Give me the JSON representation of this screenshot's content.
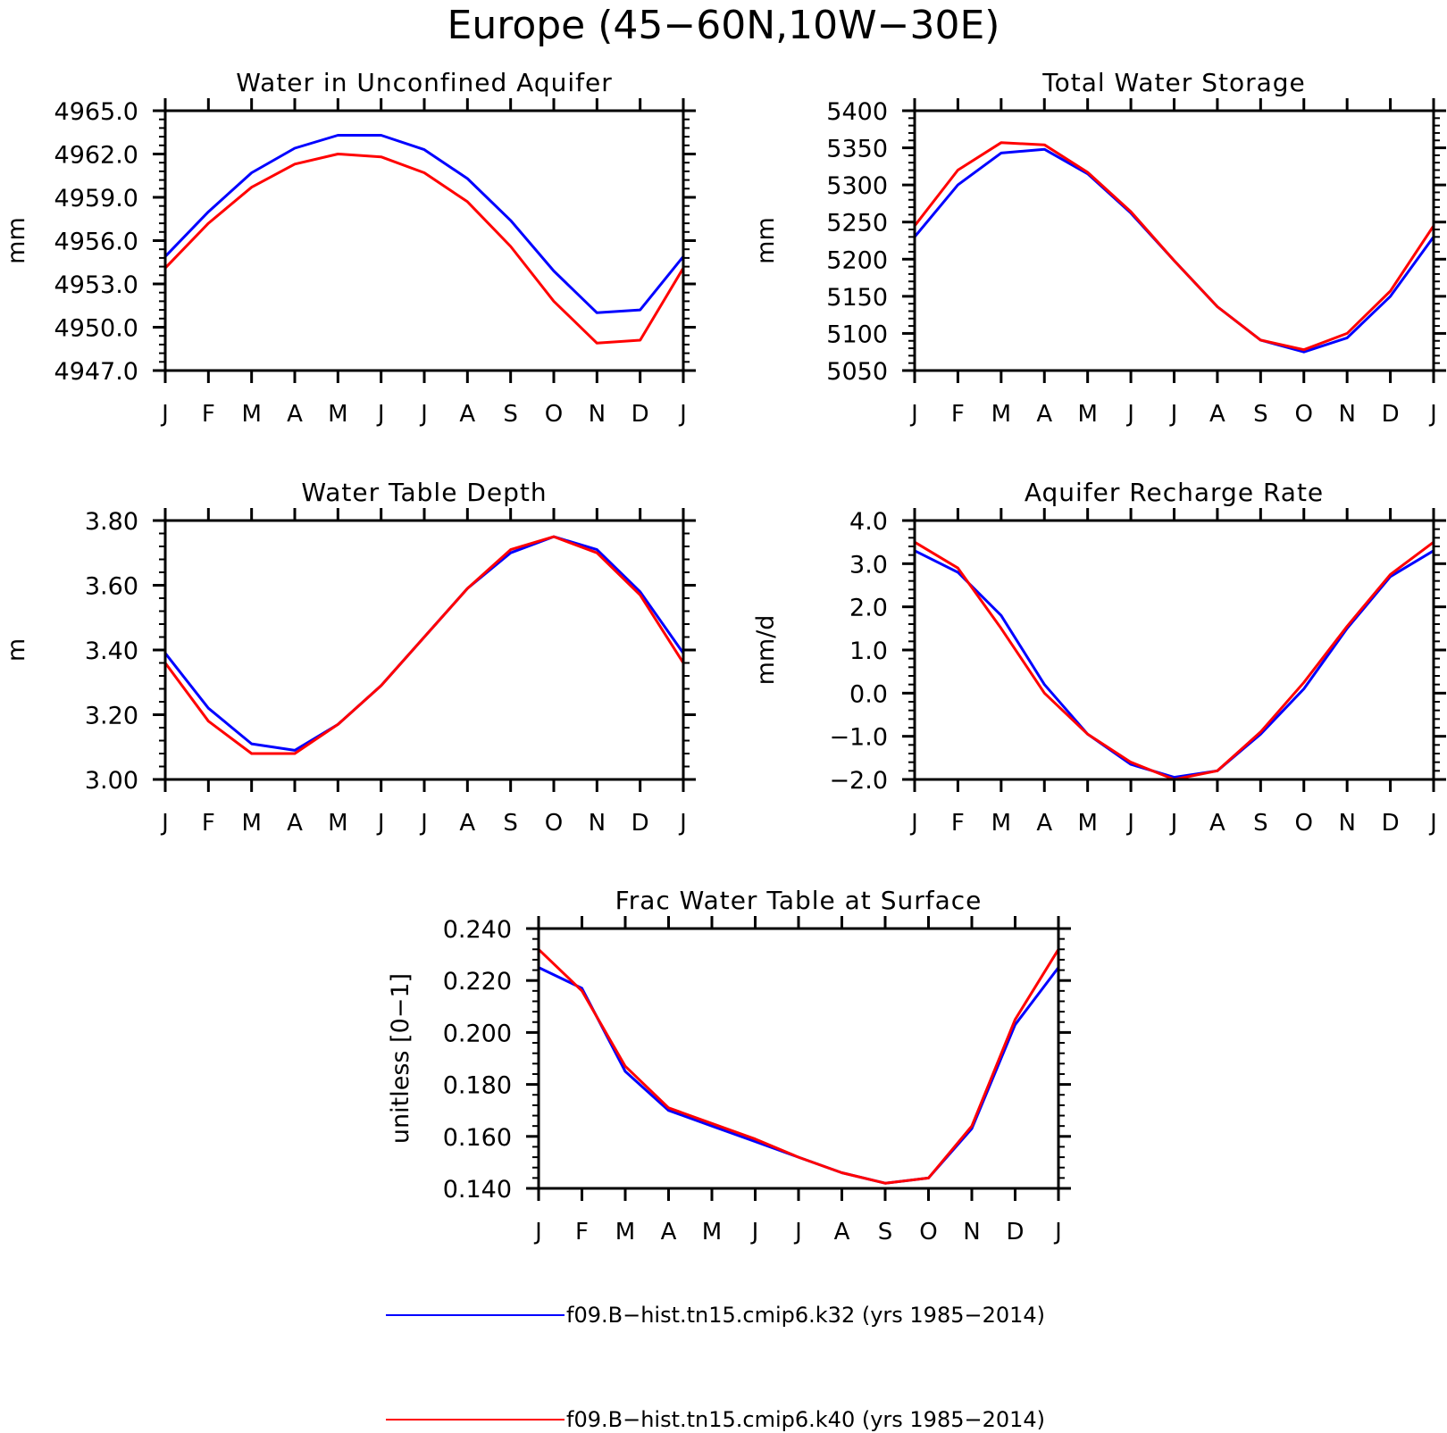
{
  "title": "Europe (45−60N,10W−30E)",
  "chart_data": [
    {
      "type": "line",
      "title": "Water in Unconfined Aquifer",
      "ylabel": "mm",
      "xlabel": "",
      "x": [
        "J",
        "F",
        "M",
        "A",
        "M",
        "J",
        "J",
        "A",
        "S",
        "O",
        "N",
        "D",
        "J"
      ],
      "ylim": [
        4947.0,
        4965.0
      ],
      "yticks": [
        "4947.0",
        "4950.0",
        "4953.0",
        "4956.0",
        "4959.0",
        "4962.0",
        "4965.0"
      ],
      "series": [
        {
          "name": "f09.B−hist.tn15.cmip6.k32 (yrs 1985−2014)",
          "color": "#0000ff",
          "values": [
            4954.9,
            4958.0,
            4960.7,
            4962.4,
            4963.3,
            4963.3,
            4962.3,
            4960.3,
            4957.4,
            4953.9,
            4951.0,
            4951.2,
            4954.9
          ]
        },
        {
          "name": "f09.B−hist.tn15.cmip6.k40 (yrs 1985−2014)",
          "color": "#ff0000",
          "values": [
            4954.1,
            4957.2,
            4959.7,
            4961.3,
            4962.0,
            4961.8,
            4960.7,
            4958.7,
            4955.6,
            4951.8,
            4948.9,
            4949.1,
            4954.1
          ]
        }
      ]
    },
    {
      "type": "line",
      "title": "Total Water Storage",
      "ylabel": "mm",
      "xlabel": "",
      "x": [
        "J",
        "F",
        "M",
        "A",
        "M",
        "J",
        "J",
        "A",
        "S",
        "O",
        "N",
        "D",
        "J"
      ],
      "ylim": [
        5050,
        5400
      ],
      "yticks": [
        "5050",
        "5100",
        "5150",
        "5200",
        "5250",
        "5300",
        "5350",
        "5400"
      ],
      "series": [
        {
          "name": "f09.B−hist.tn15.cmip6.k32 (yrs 1985−2014)",
          "color": "#0000ff",
          "values": [
            5230,
            5300,
            5343,
            5348,
            5315,
            5262,
            5198,
            5136,
            5091,
            5075,
            5094,
            5150,
            5230
          ]
        },
        {
          "name": "f09.B−hist.tn15.cmip6.k40 (yrs 1985−2014)",
          "color": "#ff0000",
          "values": [
            5245,
            5320,
            5357,
            5354,
            5317,
            5264,
            5198,
            5136,
            5091,
            5078,
            5100,
            5157,
            5245
          ]
        }
      ]
    },
    {
      "type": "line",
      "title": "Water Table Depth",
      "ylabel": "m",
      "xlabel": "",
      "x": [
        "J",
        "F",
        "M",
        "A",
        "M",
        "J",
        "J",
        "A",
        "S",
        "O",
        "N",
        "D",
        "J"
      ],
      "ylim": [
        3.0,
        3.8
      ],
      "yticks": [
        "3.00",
        "3.20",
        "3.40",
        "3.60",
        "3.80"
      ],
      "series": [
        {
          "name": "f09.B−hist.tn15.cmip6.k32 (yrs 1985−2014)",
          "color": "#0000ff",
          "values": [
            3.39,
            3.22,
            3.11,
            3.09,
            3.17,
            3.29,
            3.44,
            3.59,
            3.7,
            3.75,
            3.71,
            3.58,
            3.39
          ]
        },
        {
          "name": "f09.B−hist.tn15.cmip6.k40 (yrs 1985−2014)",
          "color": "#ff0000",
          "values": [
            3.36,
            3.18,
            3.08,
            3.08,
            3.17,
            3.29,
            3.44,
            3.59,
            3.71,
            3.75,
            3.7,
            3.57,
            3.36
          ]
        }
      ]
    },
    {
      "type": "line",
      "title": "Aquifer Recharge Rate",
      "ylabel": "mm/d",
      "xlabel": "",
      "x": [
        "J",
        "F",
        "M",
        "A",
        "M",
        "J",
        "J",
        "A",
        "S",
        "O",
        "N",
        "D",
        "J"
      ],
      "ylim": [
        -2.0,
        4.0
      ],
      "yticks": [
        "−2.0",
        "−1.0",
        "0.0",
        "1.0",
        "2.0",
        "3.0",
        "4.0"
      ],
      "series": [
        {
          "name": "f09.B−hist.tn15.cmip6.k32 (yrs 1985−2014)",
          "color": "#0000ff",
          "values": [
            3.3,
            2.8,
            1.8,
            0.2,
            -0.95,
            -1.65,
            -1.95,
            -1.8,
            -0.95,
            0.1,
            1.5,
            2.7,
            3.3
          ]
        },
        {
          "name": "f09.B−hist.tn15.cmip6.k40 (yrs 1985−2014)",
          "color": "#ff0000",
          "values": [
            3.5,
            2.9,
            1.5,
            0.0,
            -0.95,
            -1.6,
            -2.0,
            -1.8,
            -0.9,
            0.25,
            1.55,
            2.75,
            3.5
          ]
        }
      ]
    },
    {
      "type": "line",
      "title": "Frac Water Table at Surface",
      "ylabel": "unitless [0−1]",
      "xlabel": "",
      "x": [
        "J",
        "F",
        "M",
        "A",
        "M",
        "J",
        "J",
        "A",
        "S",
        "O",
        "N",
        "D",
        "J"
      ],
      "ylim": [
        0.14,
        0.24
      ],
      "yticks": [
        "0.140",
        "0.160",
        "0.180",
        "0.200",
        "0.220",
        "0.240"
      ],
      "series": [
        {
          "name": "f09.B−hist.tn15.cmip6.k32 (yrs 1985−2014)",
          "color": "#0000ff",
          "values": [
            0.225,
            0.217,
            0.185,
            0.17,
            0.164,
            0.158,
            0.152,
            0.146,
            0.142,
            0.144,
            0.163,
            0.203,
            0.225
          ]
        },
        {
          "name": "f09.B−hist.tn15.cmip6.k40 (yrs 1985−2014)",
          "color": "#ff0000",
          "values": [
            0.232,
            0.216,
            0.187,
            0.171,
            0.165,
            0.159,
            0.152,
            0.146,
            0.142,
            0.144,
            0.164,
            0.205,
            0.232
          ]
        }
      ]
    }
  ],
  "legend": {
    "placement": "bottom-center",
    "entries": [
      {
        "label": "f09.B−hist.tn15.cmip6.k32 (yrs 1985−2014)",
        "color": "#0000ff"
      },
      {
        "label": "f09.B−hist.tn15.cmip6.k40 (yrs 1985−2014)",
        "color": "#ff0000"
      }
    ]
  }
}
